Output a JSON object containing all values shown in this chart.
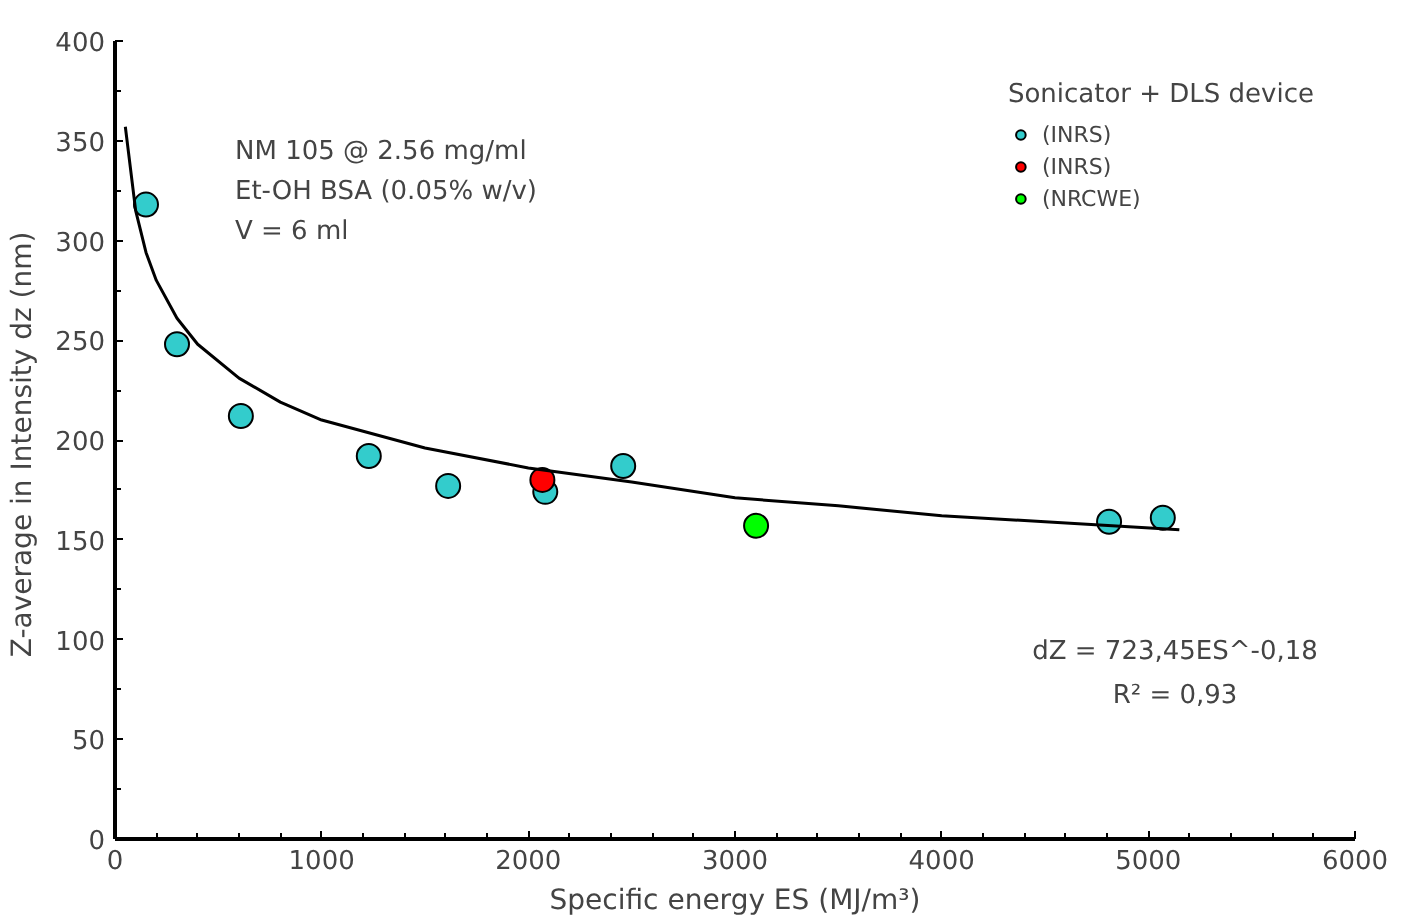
{
  "chart_data": {
    "type": "scatter",
    "xlabel": "Specific energy ES (MJ/m³)",
    "ylabel": "Z-average in Intensity  dz (nm)",
    "legend_title": "Sonicator + DLS device",
    "xlim": [
      0,
      6000
    ],
    "xticks": [
      0,
      1000,
      2000,
      3000,
      4000,
      5000,
      6000
    ],
    "ylim": [
      0,
      400
    ],
    "yticks": [
      0,
      50,
      100,
      150,
      200,
      250,
      300,
      350,
      400
    ],
    "grid": false,
    "legend": "top right",
    "marker": "circle",
    "annotations": [
      {
        "text": "NM 105 @ 2.56 mg/ml"
      },
      {
        "text": "Et-OH BSA (0.05% w/v)"
      },
      {
        "text": "V = 6 ml"
      },
      {
        "text": "dZ = 723,45ES^-0,18"
      },
      {
        "text": "R² = 0,93"
      }
    ],
    "series": [
      {
        "name": "(INRS)",
        "color": "#33cccc",
        "x": [
          150,
          300,
          609,
          1228,
          1612,
          2082,
          2459,
          4810,
          5070
        ],
        "values": [
          318,
          248,
          212,
          192,
          177,
          174,
          187,
          159,
          161
        ]
      },
      {
        "name": "(INRS)",
        "color": "#ff0000",
        "x": [
          2068
        ],
        "values": [
          180
        ]
      },
      {
        "name": "(NRCWE)",
        "color": "#00ff00",
        "x": [
          3102
        ],
        "values": [
          157
        ]
      },
      {
        "type": "line",
        "color": "#000000",
        "marker": "none",
        "x": [
          50,
          100,
          150,
          200,
          300,
          400,
          600,
          800,
          1000,
          1500,
          2000,
          2500,
          3000,
          3500,
          4000,
          4500,
          5150
        ],
        "values": [
          357,
          315,
          294,
          280,
          261,
          248,
          231,
          219,
          210,
          196,
          186,
          179,
          171,
          167,
          162,
          159,
          155
        ]
      }
    ]
  }
}
